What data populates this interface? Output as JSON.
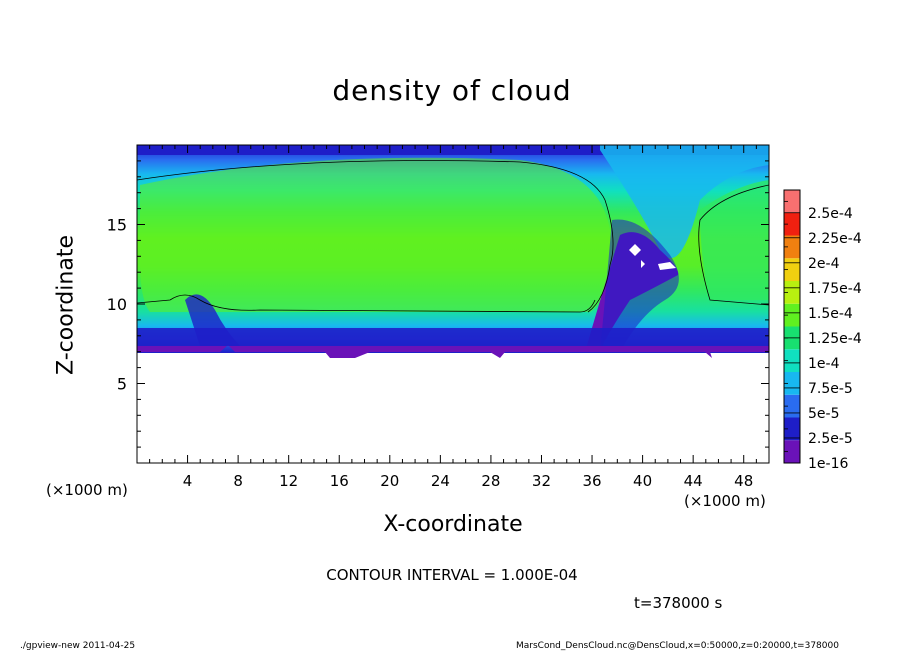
{
  "chart_data": {
    "type": "heatmap",
    "title": "density of cloud",
    "xlabel": "X-coordinate",
    "ylabel": "Z-coordinate",
    "x_unit": "(×1000 m)",
    "y_unit": "(×1000 m)",
    "xlim": [
      0,
      50
    ],
    "ylim": [
      0,
      20
    ],
    "x_ticks": [
      "4",
      "8",
      "12",
      "16",
      "20",
      "24",
      "28",
      "32",
      "36",
      "40",
      "44",
      "48"
    ],
    "y_ticks": [
      "5",
      "10",
      "15"
    ],
    "colorbar": {
      "labels": [
        "1e-16",
        "2.5e-5",
        "5e-5",
        "7.5e-5",
        "1e-4",
        "1.25e-4",
        "1.5e-4",
        "1.75e-4",
        "2e-4",
        "2.25e-4",
        "2.5e-4"
      ],
      "colors": [
        "#6a12b8",
        "#1e1ec8",
        "#2a6cf0",
        "#18b8f0",
        "#10e0c0",
        "#18e070",
        "#60f020",
        "#b8f010",
        "#f0d010",
        "#f08010",
        "#f02010",
        "#f87070"
      ]
    },
    "contour_interval_text": "CONTOUR INTERVAL = 1.000E-04",
    "time_text": "t=378000 s"
  },
  "footer": {
    "left": "./gpview-new  2011-04-25",
    "right": "MarsCond_DensCloud.nc@DensCloud,x=0:50000,z=0:20000,t=378000"
  }
}
